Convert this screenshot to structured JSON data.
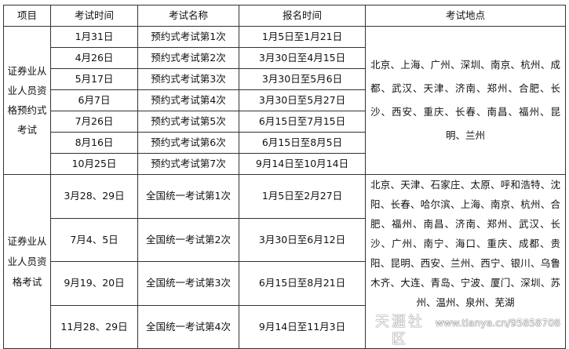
{
  "headers": [
    "项目",
    "考试时间",
    "考试名称",
    "报名时间",
    "考试地点"
  ],
  "section1": {
    "category": "证券业从业人员资格预约式考试",
    "rows": [
      {
        "time": "1月31日",
        "name": "预约式考试第1次",
        "reg": "1月5日至1月21日"
      },
      {
        "time": "4月26日",
        "name": "预约式考试第2次",
        "reg": "3月30日至4月15日"
      },
      {
        "time": "5月17日",
        "name": "预约式考试第3次",
        "reg": "3月30日至5月6日"
      },
      {
        "time": "6月7日",
        "name": "预约式考试第4次",
        "reg": "3月30日至5月27日"
      },
      {
        "time": "7月26日",
        "name": "预约式考试第5次",
        "reg": "6月15日至7月15日"
      },
      {
        "time": "8月16日",
        "name": "预约式考试第6次",
        "reg": "6月15日至8月5日"
      },
      {
        "time": "10月25日",
        "name": "预约式考试第7次",
        "reg": "9月14日至10月14日"
      }
    ],
    "places": "北京、上海、广州、深圳、南京、杭州、成都、武汉、天津、济南、郑州、合肥、长沙、西安、重庆、长春、南昌、福州、昆明、兰州"
  },
  "section2": {
    "category": "证券业从业人员资格考试",
    "rows": [
      {
        "time": "3月28、29日",
        "name": "全国统一考试第1次",
        "reg": "1月5日至2月27日"
      },
      {
        "time": "7月4、5日",
        "name": "全国统一考试第2次",
        "reg": "3月30日至6月12日"
      },
      {
        "time": "9月19、20日",
        "name": "全国统一考试第3次",
        "reg": "6月15日至8月21日"
      },
      {
        "time": "11月28、29日",
        "name": "全国统一考试第4次",
        "reg": "9月14日至11月3日"
      }
    ],
    "places": "北京、天津、石家庄、太原、呼和浩特、沈阳、长春、哈尔滨、上海、南京、杭州、合肥、福州、南昌、济南、郑州、武汉、长沙、广州、南宁、海口、重庆、成都、贵阳、昆明、西安、兰州、西宁、银川、乌鲁木齐、大连、青岛、宁波、厦门、深圳、苏州、温州、泉州、芜湖"
  },
  "watermark": {
    "logo": "天涯社区",
    "url": "www.tianya.cn/95858708"
  }
}
